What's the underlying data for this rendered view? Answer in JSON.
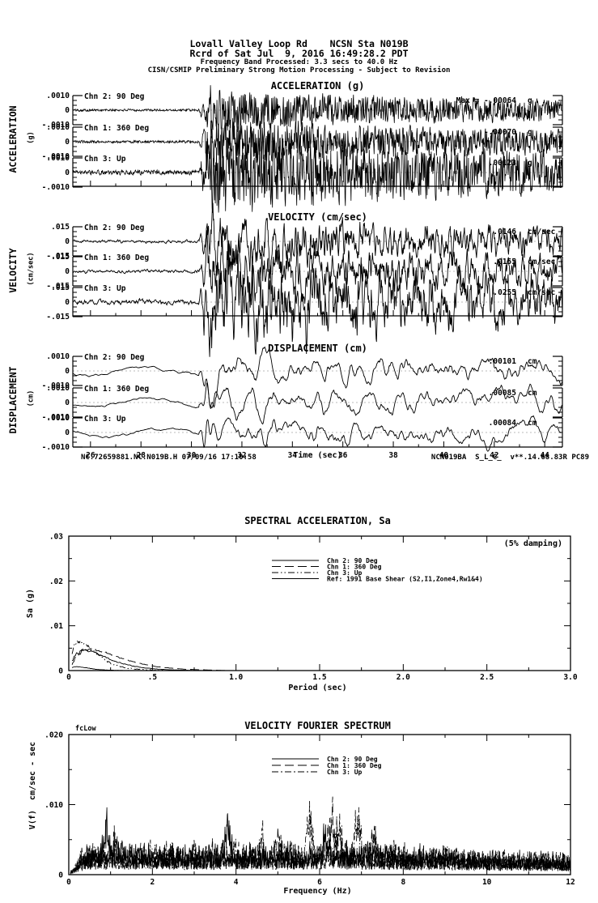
{
  "header": {
    "line1": "Lovall Valley Loop Rd    NCSN Sta N019B",
    "line2": "Rcrd of Sat Jul  9, 2016 16:49:28.2 PDT",
    "line3": "Frequency Band Processed: 3.3 secs to 40.0 Hz",
    "line4": "CISN/CSMIP Preliminary Strong Motion Processing - Subject to Revision"
  },
  "time_series_footer": {
    "left": "NC.72659881.NC.N019B.H 07/09/16 17:10:58",
    "right": "NCN019BA  S_L_C_  v**.14.68.83R PC89"
  },
  "chart_data": [
    {
      "id": "acceleration_time_series",
      "type": "line",
      "title": "ACCELERATION (g)",
      "ylabel": "ACCELERATION",
      "yunit": "(g)",
      "full_scale": 0.001,
      "scale_tick_labels": [
        ".0010",
        "0",
        "-.0010"
      ],
      "x_range_sec": [
        25.3,
        44.7
      ],
      "x_major_ticks": [
        26,
        28,
        30,
        32,
        34,
        36,
        38,
        40,
        42,
        44
      ],
      "signal_onset_sec": 30.3,
      "channels": [
        {
          "label": "Chn 2: 90 Deg",
          "max_text": "Max =  -.00064",
          "max_value": -0.00064,
          "unit": "g"
        },
        {
          "label": "Chn 1: 360 Deg",
          "max_text": "-.00070",
          "max_value": -0.0007,
          "unit": "g"
        },
        {
          "label": "Chn 3: Up",
          "max_text": ".00123",
          "max_value": 0.00123,
          "unit": "g"
        }
      ]
    },
    {
      "id": "velocity_time_series",
      "type": "line",
      "title": "VELOCITY (cm/sec)",
      "ylabel": "VELOCITY",
      "yunit": "(cm/sec)",
      "full_scale": 0.015,
      "scale_tick_labels": [
        ".015",
        "0",
        "-.015"
      ],
      "x_range_sec": [
        25.3,
        44.7
      ],
      "x_major_ticks": [
        26,
        28,
        30,
        32,
        34,
        36,
        38,
        40,
        42,
        44
      ],
      "signal_onset_sec": 30.3,
      "channels": [
        {
          "label": "Chn 2: 90 Deg",
          "max_text": ".0146",
          "max_value": 0.0146,
          "unit": "cm/sec"
        },
        {
          "label": "Chn 1: 360 Deg",
          "max_text": ".0155",
          "max_value": 0.0155,
          "unit": "cm/sec"
        },
        {
          "label": "Chn 3: Up",
          "max_text": ".0255",
          "max_value": 0.0255,
          "unit": "cm/sec"
        }
      ]
    },
    {
      "id": "displacement_time_series",
      "type": "line",
      "title": "DISPLACEMENT (cm)",
      "ylabel": "DISPLACEMENT",
      "yunit": "(cm)",
      "xlabel": "Time (sec)",
      "full_scale": 0.001,
      "scale_tick_labels": [
        ".0010",
        "0",
        "-.0010"
      ],
      "x_range_sec": [
        25.3,
        44.7
      ],
      "x_major_ticks": [
        26,
        28,
        30,
        32,
        34,
        36,
        38,
        40,
        42,
        44
      ],
      "signal_onset_sec": 30.3,
      "channels": [
        {
          "label": "Chn 2: 90 Deg",
          "max_text": ".00101",
          "max_value": 0.00101,
          "unit": "cm"
        },
        {
          "label": "Chn 1: 360 Deg",
          "max_text": ".00085",
          "max_value": 0.00085,
          "unit": "cm"
        },
        {
          "label": "Chn 3: Up",
          "max_text": ".00084",
          "max_value": 0.00084,
          "unit": "cm"
        }
      ]
    },
    {
      "id": "spectral_acceleration",
      "type": "line",
      "title": "SPECTRAL ACCELERATION, Sa",
      "damping_label": "(5% damping)",
      "xlabel": "Period (sec)",
      "ylabel": "Sa (g)",
      "xlim": [
        0,
        3.0
      ],
      "ylim": [
        0,
        0.03
      ],
      "x_tick_labels": [
        "0",
        ".5",
        "1.0",
        "1.5",
        "2.0",
        "2.5",
        "3.0"
      ],
      "x_tick_values": [
        0,
        0.5,
        1.0,
        1.5,
        2.0,
        2.5,
        3.0
      ],
      "y_tick_labels": [
        ".03",
        ".02",
        ".01",
        "0"
      ],
      "y_tick_values": [
        0.03,
        0.02,
        0.01,
        0
      ],
      "legend": [
        {
          "label": "Chn 2: 90 Deg",
          "dash": "solid"
        },
        {
          "label": "Chn 1: 360 Deg",
          "dash": "long-dash"
        },
        {
          "label": "Chn 3: Up",
          "dash": "dash-dot-dot"
        },
        {
          "label": "Ref: 1991 Base Shear (S2,I1,Zone4,Rw1&4)",
          "dash": "solid"
        }
      ],
      "series": [
        {
          "name": "Chn 2: 90 Deg",
          "dash": "solid",
          "peak_period_sec": 0.1,
          "peak_sa_g": 0.0045
        },
        {
          "name": "Chn 1: 360 Deg",
          "dash": "long-dash",
          "peak_period_sec": 0.13,
          "peak_sa_g": 0.0047
        },
        {
          "name": "Chn 3: Up",
          "dash": "dash-dot-dot",
          "peak_period_sec": 0.07,
          "peak_sa_g": 0.0063
        },
        {
          "name": "Ref: 1991 Base Shear (S2,I1,Zone4,Rw1&4)",
          "dash": "solid",
          "peak_period_sec": 0.05,
          "peak_sa_g": 0.0009
        }
      ],
      "note": "All spectra are concentrated below ~0.9 sec period and decay to ~0 beyond it"
    },
    {
      "id": "velocity_fourier_spectrum",
      "type": "line",
      "title": "VELOCITY FOURIER SPECTRUM",
      "corner_label": "fcLow",
      "xlabel": "Frequency (Hz)",
      "ylabel": "V(f)  cm/sec - sec",
      "xlim": [
        0,
        12
      ],
      "ylim": [
        0,
        0.02
      ],
      "x_tick_labels": [
        "0",
        "2",
        "4",
        "6",
        "8",
        "10",
        "12"
      ],
      "x_tick_values": [
        0,
        2,
        4,
        6,
        8,
        10,
        12
      ],
      "y_tick_labels": [
        ".020",
        ".010",
        "0"
      ],
      "y_tick_values": [
        0.02,
        0.01,
        0
      ],
      "legend": [
        {
          "label": "Chn 2: 90 Deg",
          "dash": "solid"
        },
        {
          "label": "Chn 1: 360 Deg",
          "dash": "long-dash"
        },
        {
          "label": "Chn 3: Up",
          "dash": "dash-dot"
        }
      ],
      "series": [
        {
          "name": "Chn 2: 90 Deg",
          "dash": "solid",
          "peaks": [
            {
              "f": 0.9,
              "a": 0.005,
              "w": 0.09
            },
            {
              "f": 3.8,
              "a": 0.0055,
              "w": 0.1
            },
            {
              "f": 6.15,
              "a": 0.004,
              "w": 0.1
            }
          ]
        },
        {
          "name": "Chn 1: 360 Deg",
          "dash": "long-dash",
          "peaks": [
            {
              "f": 1.1,
              "a": 0.004,
              "w": 0.09
            },
            {
              "f": 5.0,
              "a": 0.004,
              "w": 0.1
            },
            {
              "f": 6.3,
              "a": 0.0065,
              "w": 0.12
            },
            {
              "f": 7.3,
              "a": 0.004,
              "w": 0.1
            }
          ]
        },
        {
          "name": "Chn 3: Up",
          "dash": "dash-dot",
          "peaks": [
            {
              "f": 4.6,
              "a": 0.004,
              "w": 0.09
            },
            {
              "f": 5.75,
              "a": 0.0078,
              "w": 0.1
            },
            {
              "f": 6.45,
              "a": 0.006,
              "w": 0.08
            },
            {
              "f": 6.9,
              "a": 0.0075,
              "w": 0.09
            }
          ]
        }
      ],
      "noise_floor_cm": 0.003
    }
  ]
}
